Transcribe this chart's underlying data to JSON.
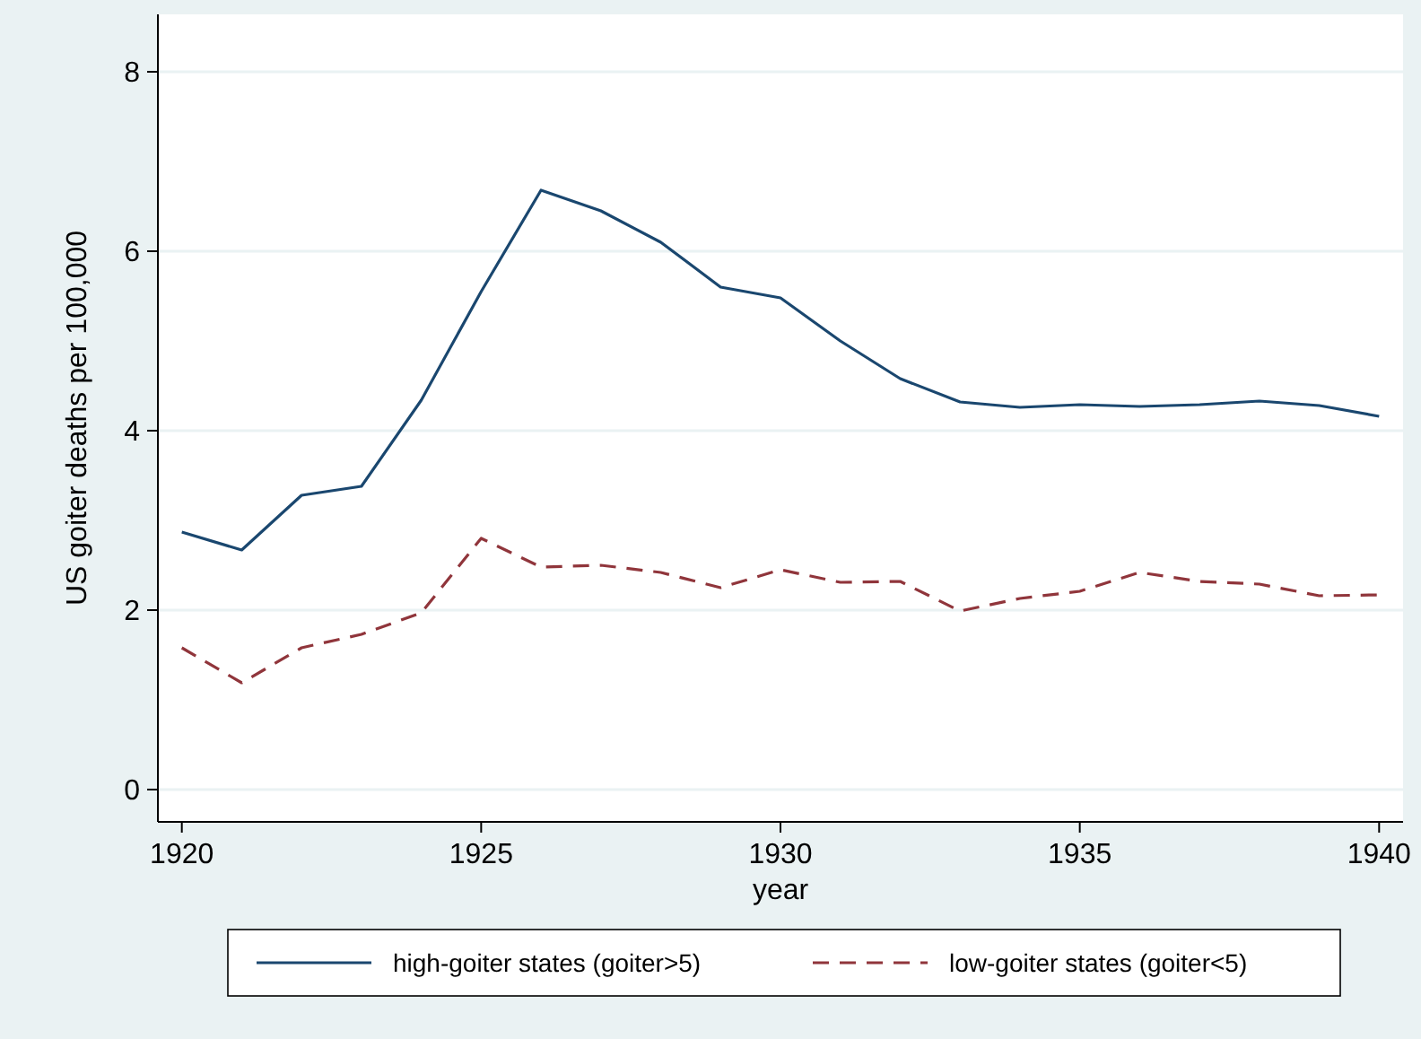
{
  "chart_data": {
    "type": "line",
    "xlabel": "year",
    "ylabel": "US goiter deaths per 100,000",
    "x": [
      1920,
      1921,
      1922,
      1923,
      1924,
      1925,
      1926,
      1927,
      1928,
      1929,
      1930,
      1931,
      1932,
      1933,
      1934,
      1935,
      1936,
      1937,
      1938,
      1939,
      1940
    ],
    "series": [
      {
        "name": "high-goiter states (goiter>5)",
        "color": "#1a476f",
        "line_style": "solid",
        "values": [
          2.87,
          2.67,
          3.28,
          3.38,
          4.34,
          5.55,
          6.68,
          6.45,
          6.1,
          5.6,
          5.48,
          5.0,
          4.58,
          4.32,
          4.26,
          4.29,
          4.27,
          4.29,
          4.33,
          4.28,
          4.16
        ]
      },
      {
        "name": "low-goiter states (goiter<5)",
        "color": "#90353b",
        "line_style": "dashed",
        "values": [
          1.58,
          1.19,
          1.58,
          1.73,
          1.97,
          2.8,
          2.48,
          2.5,
          2.42,
          2.25,
          2.45,
          2.31,
          2.32,
          1.99,
          2.13,
          2.21,
          2.42,
          2.32,
          2.29,
          2.16,
          2.17
        ]
      }
    ],
    "xlim": [
      1919.6,
      1940.4
    ],
    "xticks": [
      1920,
      1925,
      1930,
      1935,
      1940
    ],
    "ylim": [
      -0.36,
      8.64
    ],
    "yticks": [
      0,
      2,
      4,
      6,
      8
    ],
    "grid": "y",
    "legend": "bottom",
    "marker": "none"
  }
}
